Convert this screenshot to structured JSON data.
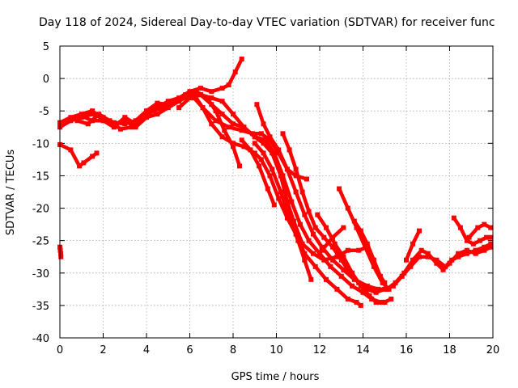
{
  "chart_data": {
    "type": "line",
    "title": "Day 118 of 2024, Sidereal Day-to-day VTEC variation (SDTVAR) for receiver func",
    "xlabel": "GPS time / hours",
    "ylabel": "SDTVAR / TECUs",
    "xlim": [
      0,
      20
    ],
    "ylim": [
      -40,
      5
    ],
    "xticks": [
      "0",
      "2",
      "4",
      "6",
      "8",
      "10",
      "12",
      "14",
      "16",
      "18",
      "20"
    ],
    "yticks": [
      "5",
      "0",
      "-5",
      "-10",
      "-15",
      "-20",
      "-25",
      "-30",
      "-35",
      "-40"
    ],
    "xtick_values": [
      0,
      2,
      4,
      6,
      8,
      10,
      12,
      14,
      16,
      18,
      20
    ],
    "ytick_values": [
      5,
      0,
      -5,
      -10,
      -15,
      -20,
      -25,
      -30,
      -35,
      -40
    ],
    "grid": true,
    "series_color": "#ff0000",
    "series": [
      {
        "name": "s1",
        "values": [
          [
            0,
            -7.5
          ],
          [
            0.5,
            -6.5
          ],
          [
            1,
            -6
          ],
          [
            1.5,
            -5.5
          ],
          [
            2,
            -6
          ],
          [
            2.5,
            -6.8
          ],
          [
            3,
            -7
          ],
          [
            3.5,
            -6.5
          ],
          [
            4,
            -5
          ],
          [
            4.5,
            -3.8
          ],
          [
            5,
            -4
          ],
          [
            5.5,
            -3.5
          ],
          [
            6,
            -2.5
          ],
          [
            6.3,
            -2
          ],
          [
            6.8,
            -3
          ],
          [
            7.2,
            -5
          ],
          [
            7.6,
            -8
          ],
          [
            8,
            -10.5
          ],
          [
            8.3,
            -13.5
          ]
        ]
      },
      {
        "name": "s2",
        "values": [
          [
            0,
            -6.8
          ],
          [
            0.5,
            -6
          ],
          [
            1,
            -5.5
          ],
          [
            1.5,
            -5
          ],
          [
            2,
            -6.5
          ],
          [
            2.5,
            -7.5
          ],
          [
            3,
            -6
          ],
          [
            3.5,
            -7
          ],
          [
            4,
            -5.5
          ],
          [
            4.5,
            -4.5
          ],
          [
            5,
            -3.5
          ],
          [
            5.5,
            -3
          ],
          [
            6,
            -2
          ],
          [
            6.5,
            -1.5
          ],
          [
            7,
            -2
          ],
          [
            7.5,
            -1.5
          ],
          [
            7.8,
            -1
          ],
          [
            8.1,
            1
          ],
          [
            8.4,
            3
          ]
        ]
      },
      {
        "name": "s3",
        "values": [
          [
            0,
            -10.2
          ],
          [
            0.5,
            -11
          ],
          [
            0.9,
            -13.5
          ],
          [
            1.1,
            -13
          ],
          [
            1.5,
            -12
          ],
          [
            1.7,
            -11.5
          ]
        ]
      },
      {
        "name": "s4",
        "values": [
          [
            0.8,
            -6.5
          ],
          [
            1.3,
            -7
          ],
          [
            1.8,
            -5.5
          ],
          [
            2.3,
            -6.5
          ],
          [
            2.8,
            -7.8
          ],
          [
            3.3,
            -7.5
          ],
          [
            3.8,
            -6.2
          ],
          [
            4.3,
            -5
          ],
          [
            4.8,
            -4.5
          ],
          [
            5.3,
            -3.5
          ],
          [
            5.8,
            -2.5
          ],
          [
            6.2,
            -3
          ],
          [
            6.6,
            -4.5
          ],
          [
            7.2,
            -6.5
          ],
          [
            7.8,
            -7.5
          ],
          [
            8.4,
            -8
          ],
          [
            8.9,
            -8.5
          ],
          [
            9.3,
            -8.5
          ],
          [
            9.7,
            -9.5
          ],
          [
            10.1,
            -11.5
          ],
          [
            10.5,
            -14
          ],
          [
            10.9,
            -15
          ],
          [
            11.4,
            -15.5
          ]
        ]
      },
      {
        "name": "s5",
        "values": [
          [
            1,
            -5.8
          ],
          [
            1.5,
            -6.5
          ],
          [
            2,
            -6.5
          ],
          [
            2.5,
            -7
          ],
          [
            3,
            -6.5
          ],
          [
            3.5,
            -7.5
          ],
          [
            4,
            -6
          ],
          [
            4.5,
            -5.5
          ],
          [
            5,
            -4.5
          ],
          [
            5.5,
            -3.5
          ],
          [
            6,
            -2.5
          ],
          [
            6.5,
            -2.5
          ],
          [
            7,
            -3
          ],
          [
            7.5,
            -3.5
          ],
          [
            8,
            -5.5
          ],
          [
            8.5,
            -7.5
          ],
          [
            9,
            -9
          ],
          [
            9.4,
            -10
          ],
          [
            9.8,
            -11.5
          ],
          [
            10.2,
            -15
          ],
          [
            10.5,
            -19
          ],
          [
            10.8,
            -22
          ],
          [
            11.2,
            -25.5
          ],
          [
            11.7,
            -27
          ],
          [
            12.2,
            -28
          ],
          [
            12.8,
            -27.5
          ],
          [
            13.3,
            -26.5
          ],
          [
            13.8,
            -26.5
          ],
          [
            14.2,
            -26
          ]
        ]
      },
      {
        "name": "s6",
        "values": [
          [
            5.5,
            -4.5
          ],
          [
            6,
            -3
          ],
          [
            6.5,
            -2.5
          ],
          [
            7,
            -4
          ],
          [
            7.5,
            -5.5
          ],
          [
            8,
            -7
          ],
          [
            8.5,
            -7.5
          ],
          [
            9,
            -9
          ],
          [
            9.5,
            -9.5
          ],
          [
            9.9,
            -11.5
          ],
          [
            10.3,
            -15
          ],
          [
            10.7,
            -19
          ],
          [
            11.1,
            -22.5
          ],
          [
            11.5,
            -25
          ],
          [
            12,
            -27
          ],
          [
            12.5,
            -29
          ],
          [
            13,
            -30.5
          ],
          [
            13.5,
            -32
          ],
          [
            14,
            -33
          ],
          [
            14.4,
            -34
          ],
          [
            14.8,
            -34.5
          ],
          [
            15,
            -34.5
          ]
        ]
      },
      {
        "name": "s7",
        "values": [
          [
            6.2,
            -2.5
          ],
          [
            6.6,
            -4.5
          ],
          [
            7,
            -7
          ],
          [
            7.5,
            -9
          ],
          [
            8,
            -10
          ],
          [
            8.5,
            -10.5
          ],
          [
            9,
            -11.5
          ],
          [
            9.3,
            -12.5
          ],
          [
            9.7,
            -15
          ],
          [
            10.1,
            -18.5
          ],
          [
            10.5,
            -21.5
          ],
          [
            10.9,
            -24
          ],
          [
            11.3,
            -27
          ],
          [
            11.8,
            -29
          ],
          [
            12.3,
            -31
          ],
          [
            12.8,
            -32.5
          ],
          [
            13.3,
            -34
          ],
          [
            13.7,
            -34.5
          ],
          [
            13.9,
            -35
          ]
        ]
      },
      {
        "name": "s8",
        "values": [
          [
            8.4,
            -9.5
          ],
          [
            8.8,
            -11
          ],
          [
            9.2,
            -13.5
          ],
          [
            9.6,
            -17
          ],
          [
            9.9,
            -19.5
          ]
        ]
      },
      {
        "name": "s9",
        "values": [
          [
            9,
            -10
          ],
          [
            9.4,
            -11.5
          ],
          [
            9.8,
            -14
          ],
          [
            10.2,
            -17.5
          ],
          [
            10.6,
            -21.5
          ],
          [
            11,
            -25
          ],
          [
            11.3,
            -28
          ],
          [
            11.6,
            -31
          ]
        ]
      },
      {
        "name": "s10",
        "values": [
          [
            9.1,
            -4
          ],
          [
            9.4,
            -7
          ],
          [
            9.7,
            -9
          ],
          [
            10.1,
            -11
          ],
          [
            10.5,
            -14
          ],
          [
            10.9,
            -17.5
          ],
          [
            11.3,
            -21
          ],
          [
            11.7,
            -24
          ],
          [
            12.1,
            -26
          ],
          [
            12.6,
            -28
          ],
          [
            13.1,
            -29.5
          ],
          [
            13.6,
            -31
          ],
          [
            14.2,
            -32
          ],
          [
            14.7,
            -32.5
          ],
          [
            15.1,
            -32.5
          ],
          [
            15.5,
            -31.5
          ],
          [
            15.9,
            -30
          ],
          [
            16.3,
            -28
          ],
          [
            16.7,
            -26.5
          ],
          [
            17,
            -27
          ],
          [
            17.4,
            -28.5
          ],
          [
            17.7,
            -29.5
          ],
          [
            18,
            -28.5
          ],
          [
            18.4,
            -27
          ],
          [
            18.8,
            -26.5
          ],
          [
            19.2,
            -27
          ],
          [
            19.6,
            -26.5
          ],
          [
            19.9,
            -26
          ]
        ]
      },
      {
        "name": "s11",
        "values": [
          [
            10.3,
            -8.5
          ],
          [
            10.6,
            -11
          ],
          [
            10.9,
            -14
          ],
          [
            11.2,
            -17.5
          ],
          [
            11.5,
            -20.5
          ],
          [
            11.8,
            -23
          ],
          [
            12.2,
            -24.5
          ],
          [
            12.6,
            -26
          ],
          [
            13,
            -28
          ],
          [
            13.4,
            -30
          ],
          [
            13.8,
            -31.5
          ],
          [
            14.2,
            -32.5
          ],
          [
            14.6,
            -33
          ],
          [
            15,
            -32.5
          ],
          [
            15.4,
            -32
          ],
          [
            15.8,
            -30.5
          ],
          [
            16.2,
            -29
          ],
          [
            16.6,
            -27.5
          ],
          [
            17,
            -27.5
          ],
          [
            17.4,
            -28
          ],
          [
            17.8,
            -29
          ],
          [
            18.1,
            -28
          ],
          [
            18.4,
            -27.5
          ],
          [
            18.8,
            -27
          ],
          [
            19.2,
            -26.5
          ],
          [
            19.6,
            -26
          ],
          [
            19.9,
            -25.5
          ]
        ]
      },
      {
        "name": "s12",
        "values": [
          [
            11.9,
            -21
          ],
          [
            12.3,
            -23
          ],
          [
            12.7,
            -25.5
          ],
          [
            13.1,
            -27.5
          ],
          [
            13.5,
            -30
          ],
          [
            13.9,
            -32
          ],
          [
            14.3,
            -33.5
          ],
          [
            14.6,
            -34.5
          ],
          [
            15,
            -34.5
          ],
          [
            15.3,
            -34
          ]
        ]
      },
      {
        "name": "s13",
        "values": [
          [
            12.1,
            -26.5
          ],
          [
            12.6,
            -24.5
          ],
          [
            13.1,
            -23
          ]
        ]
      },
      {
        "name": "s14",
        "values": [
          [
            12.9,
            -17
          ],
          [
            13.3,
            -20
          ],
          [
            13.7,
            -23
          ],
          [
            14.1,
            -26
          ],
          [
            14.5,
            -29
          ],
          [
            14.9,
            -31.5
          ],
          [
            15.2,
            -32.5
          ]
        ]
      },
      {
        "name": "s15",
        "values": [
          [
            13.6,
            -22
          ],
          [
            13.9,
            -23.5
          ],
          [
            14.2,
            -25.5
          ],
          [
            14.5,
            -28
          ],
          [
            14.8,
            -30.5
          ],
          [
            15,
            -31.5
          ]
        ]
      },
      {
        "name": "s16",
        "values": [
          [
            16,
            -28
          ],
          [
            16.3,
            -25.5
          ],
          [
            16.6,
            -23.5
          ]
        ]
      },
      {
        "name": "s17",
        "values": [
          [
            18.2,
            -21.5
          ],
          [
            18.5,
            -23
          ],
          [
            18.8,
            -25
          ],
          [
            19.1,
            -25.5
          ],
          [
            19.4,
            -25
          ],
          [
            19.7,
            -24.5
          ],
          [
            19.9,
            -24.5
          ]
        ]
      },
      {
        "name": "s18",
        "values": [
          [
            18.9,
            -24.5
          ],
          [
            19.3,
            -23
          ],
          [
            19.6,
            -22.5
          ],
          [
            19.9,
            -23
          ]
        ]
      },
      {
        "name": "s19",
        "values": [
          [
            0,
            -26
          ],
          [
            0.02,
            -26.5
          ],
          [
            0.04,
            -27
          ],
          [
            0.05,
            -27.5
          ]
        ]
      }
    ]
  }
}
